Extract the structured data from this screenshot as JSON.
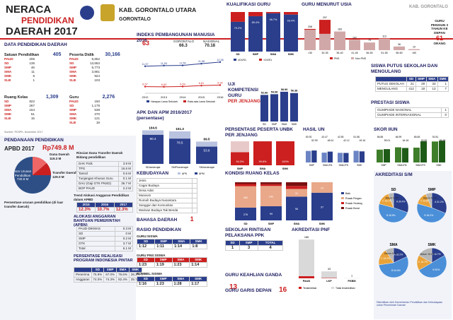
{
  "header": {
    "title1": "NERACA",
    "title2": "PENDIDIKAN",
    "title3": "DAERAH 2017",
    "region": "KAB. GORONTALO UTARA",
    "region2": "GORONTALO",
    "corner": "KAB. GORONTALO"
  },
  "data_pendidikan": {
    "title": "DATA PENDIDIKAN DAERAH",
    "satuan": {
      "label": "Satuan Pendidikan",
      "total": "405",
      "items": [
        [
          "PAUD",
          "206"
        ],
        [
          "SD",
          "135"
        ],
        [
          "SMP",
          "46"
        ],
        [
          "SMA",
          "11"
        ],
        [
          "SMK",
          "6"
        ],
        [
          "SLB",
          "1"
        ]
      ]
    },
    "peserta": {
      "label": "Peserta Didik",
      "total": "30,166",
      "items": [
        [
          "PAUD",
          "5,852"
        ],
        [
          "SD",
          "13,653"
        ],
        [
          "SMP",
          "5,773"
        ],
        [
          "SMA",
          "3,861"
        ],
        [
          "SMK",
          "924"
        ],
        [
          "SLB",
          "103"
        ]
      ]
    },
    "ruang": {
      "label": "Ruang Kelas",
      "total": "1,309",
      "items": [
        [
          "SD",
          "822"
        ],
        [
          "SMP",
          "267"
        ],
        [
          "SMA",
          "154"
        ],
        [
          "SMK",
          "51"
        ],
        [
          "SLB",
          "15"
        ]
      ]
    },
    "guru": {
      "label": "Guru",
      "total": "2,276",
      "items": [
        [
          "PAUD",
          "150"
        ],
        [
          "SD",
          "1,178"
        ],
        [
          "SMP",
          "538"
        ],
        [
          "SMA",
          "270"
        ],
        [
          "SMK",
          "121"
        ],
        [
          "SLB",
          "19"
        ]
      ]
    },
    "source": "Sumber: PDSPK, November 2017"
  },
  "ipm": {
    "title": "INDEKS PEMBANGUNAN MANUSIA 2016",
    "rank": "63",
    "label_a": "GORONTALO",
    "val_a": "66.3",
    "label_b": "NASIONAL",
    "val_b": "70.18",
    "legend_a": "Harapan Lama Sekolah",
    "legend_b": "Rata-rata Lama Sekolah"
  },
  "apk": {
    "title": "APK DAN APM 2016/2017",
    "subtitle": "(persentase)",
    "legend_a": "APK",
    "legend_b": "APM"
  },
  "kualifikasi": {
    "title": "KUALIFIKASI GURU"
  },
  "usia": {
    "title": "GURU MENURUT USIA",
    "note": "GURU PENSIUN 3 TAHUN KE DEPAN",
    "note_val": "61",
    "note_unit": "ORANG"
  },
  "uji": {
    "title": "UJI KOMPETENSI GURU",
    "sub": "PER JENJANG"
  },
  "putus": {
    "title": "SISWA PUTUS SEKOLAH DAN MENGULANG",
    "rows": [
      [
        "PUTUS SEKOLAH",
        "21",
        "29",
        "33",
        "1"
      ],
      [
        "MENGULANG",
        "412",
        "18",
        "13",
        "7"
      ]
    ],
    "cols": [
      "SD",
      "SMP",
      "SMA",
      "SMK"
    ]
  },
  "prestasi": {
    "title": "PRESTASI SISWA",
    "rows": [
      [
        "OLIMPIADE NASIONAL",
        "1"
      ],
      [
        "OLIMPIADE INTERNASIONAL",
        "0"
      ]
    ]
  },
  "unbk": {
    "title": "PERSENTASE PESERTA UNBK PER JENJANG"
  },
  "hasil_un": {
    "title": "HASIL UN"
  },
  "skor_iun": {
    "title": "SKOR IIUN"
  },
  "dana": {
    "title": "PENDANAAN PENDIDIKAN",
    "apbd": "APBD 2017",
    "apbd_val": "Rp749.8 M",
    "dana_daerah": "Dana Daerah",
    "dana_daerah_val": "119.3 M",
    "transfer": "Transfer Daerah",
    "transfer_val": "129.0 M",
    "non": "Non Urusan Pendidikan",
    "non_val": "730.8 M",
    "rincian": "Rincian Dana Transfer Daerah Bidang pendidikan",
    "rincian_rows": [
      [
        "DAK Fisik",
        "3.9 M"
      ],
      [
        "TPG",
        "16.6 M"
      ],
      [
        "Tamsil",
        "0.6 M"
      ],
      [
        "Tunjangan Khusus Guru",
        "0.1 M"
      ],
      [
        "DAU (Gaji GTK PNSD)",
        "36.7 M"
      ],
      [
        "BOP PAUD",
        "2.2 M"
      ]
    ],
    "tren_title": "Trend Alokasi Anggaran Pendidikan dalam APBD",
    "tren_years": [
      "2015",
      "2016",
      "2017"
    ],
    "tren_vals": [
      "12.3%",
      "10.7%",
      "12.3%"
    ],
    "alok_title": "ALOKASI ANGGARAN BANTUAN PEMERINTAH (APBN)",
    "alok_rows": [
      [
        "PAUD-DIKMAS",
        "0.3 M"
      ],
      [
        "SD",
        "0 M"
      ],
      [
        "SMP",
        "0.2 M"
      ],
      [
        "GTK",
        "3.7 M"
      ],
      [
        "Total",
        "6.1 M"
      ]
    ],
    "persen_title": "Persentase urusan pendidikan (di luar transfer daerah)"
  },
  "pip": {
    "title": "PERSENTASE REALISASI PROGRAM INDONESIA PINTAR",
    "cols": [
      "SD",
      "SMP",
      "SMA",
      "SMK"
    ],
    "rows": [
      [
        "Penerima",
        "75.9%",
        "67.0%",
        "76.6%",
        "26.3%"
      ],
      [
        "Anggaran",
        "74.0%",
        "74.3%",
        "82.4%",
        "25.7%"
      ]
    ]
  },
  "kebudayaan": {
    "title": "KEBUDAYAAN",
    "col": "JUMLAH",
    "rows": [
      "Jenis",
      "Cagar Budaya",
      "Desa Adat",
      "Museum",
      "Rumah Budaya Nusantara",
      "Sanggar dan Komunitas",
      "Warisan Budaya Tak Benda"
    ]
  },
  "bahasa": {
    "title": "BAHASA DAERAH",
    "val": "1"
  },
  "rasio": {
    "title": "RASIO PENDIDIKAN",
    "g1": "GURU:SISWA",
    "g1c": [
      "SD",
      "SMP",
      "SMA",
      "SMK"
    ],
    "g1v": [
      "1:12",
      "1:11",
      "1:14",
      "1:8"
    ],
    "g2": "GURU PNS:SISWA",
    "g2v": [
      "1:23",
      "1:19",
      "1:23",
      "1:14"
    ],
    "g3": "ROMBEL:SISWA",
    "g3v": [
      "1:16",
      "1:23",
      "1:28",
      "1:17"
    ]
  },
  "kondisi": {
    "title": "KONDISI RUANG KELAS",
    "legend": [
      "Baik",
      "Rusak Ringan",
      "Rusak Sedang",
      "Rusak Berat"
    ]
  },
  "ppk": {
    "title": "SEKOLAH RINTISAN PELAKSANA PPK",
    "cols": [
      "SD",
      "SMP",
      "TOTAL"
    ],
    "vals": [
      "1",
      "3",
      "4"
    ]
  },
  "keahlian": {
    "title": "GURU KEAHLIAN GANDA",
    "val": "13"
  },
  "daerah_khusus": {
    "title": "GURU GARIS DEPAN",
    "val": "16"
  },
  "pnf": {
    "title": "AKREDITASI PNF",
    "legend_a": "Terakreditasi",
    "legend_b": "Tidak terakreditasi"
  },
  "akreditasi": {
    "title": "AKREDITASI S/M",
    "labels": [
      "SD",
      "SMP",
      "SMA",
      "SMK"
    ]
  },
  "footer": "Diterbitkan oleh Kementerian Pendidikan dan Kebudayaan untuk Pemerintah Daerah",
  "chart_data": [
    {
      "type": "line",
      "title": "INDEKS PEMBANGUNAN MANUSIA 2016",
      "x": [
        "2012",
        "2013",
        "2014",
        "2015",
        "2016"
      ],
      "series": [
        {
          "name": "Harapan Lama Sekolah",
          "values": [
            11.37,
            11.53,
            11.56,
            11.98,
            12.36
          ]
        },
        {
          "name": "Rata-rata Lama Sekolah",
          "values": [
            6.57,
            6.53,
            6.59,
            6.81,
            6.92
          ]
        }
      ]
    },
    {
      "type": "bar",
      "title": "APK DAN APM 2016/2017",
      "categories": [
        "SD/sederajat",
        "SMP/sederajat",
        "SM/sederajat"
      ],
      "series": [
        {
          "name": "APK",
          "values": [
            104.6,
            101.3,
            69.5
          ]
        },
        {
          "name": "APM",
          "values": [
            90.4,
            78.5,
            53.6
          ]
        }
      ]
    },
    {
      "type": "bar",
      "title": "KUALIFIKASI GURU",
      "categories": [
        "SD",
        "SMP",
        "SMA",
        "SMK"
      ],
      "series": [
        {
          "name": "≥D4/S1",
          "values": [
            75.2,
            89.4,
            96.7,
            93.4
          ]
        },
        {
          "name": "<D4/S1",
          "values": [
            24.8,
            10.6,
            3.3,
            6.6
          ]
        }
      ]
    },
    {
      "type": "bar",
      "title": "GURU MENURUT USIA",
      "categories": [
        "<30",
        "30-35",
        "36-40",
        "41-45",
        "46-50",
        "51-55",
        "56-60",
        ">60"
      ],
      "series": [
        {
          "name": "PNS",
          "values": [
            8,
            137,
            0,
            0,
            0,
            0,
            0,
            0
          ]
        },
        {
          "name": "Non PNS",
          "values": [
            200,
            160,
            183,
            102,
            75,
            113,
            36,
            10
          ]
        }
      ]
    },
    {
      "type": "bar",
      "title": "UJI KOMPETENSI GURU",
      "categories": [
        "SD",
        "SMP",
        "SMA",
        "SMK"
      ],
      "values": [
        52.66,
        54.08,
        58.99,
        56.38
      ]
    },
    {
      "type": "bar",
      "title": "PERSENTASE PESERTA UNBK PER JENJANG",
      "categories": [
        "SMP",
        "SMA",
        "SMK"
      ],
      "values": [
        54.3,
        99.8,
        100
      ]
    },
    {
      "type": "bar",
      "title": "HASIL UN",
      "categories": [
        "SMP",
        "SMA IPA",
        "SMA IPS",
        "SMK"
      ],
      "series": [
        {
          "name": "Kab.",
          "values": [
            50.92,
            43.47,
            42.55,
            51.58
          ]
        },
        {
          "name": "Prov.",
          "values": [
            52.99,
            48.04,
            42.12,
            49.16
          ]
        }
      ]
    },
    {
      "type": "bar",
      "title": "SKOR IIUN",
      "categories": [
        "SMP",
        "SMA IPA",
        "SMA IPS",
        "SMK"
      ],
      "series": [
        {
          "name": "Kab.",
          "values": [
            56.85,
            66.99,
            65.65,
            92.81
          ]
        },
        {
          "name": "Prov.",
          "values": [
            59.01,
            64.18,
            93.69,
            95.99
          ]
        }
      ]
    },
    {
      "type": "bar",
      "title": "KONDISI RUANG KELAS",
      "categories": [
        "SD",
        "SMP",
        "SMA",
        "SMK"
      ],
      "series": [
        {
          "name": "Baik",
          "values": [
            276,
            99,
            96,
            37
          ]
        },
        {
          "name": "Rusak Ringan",
          "values": [
            460,
            142,
            31,
            14
          ]
        },
        {
          "name": "Rusak Sedang",
          "values": [
            48,
            12,
            12,
            0
          ]
        },
        {
          "name": "Rusak Berat",
          "values": [
            38,
            14,
            15,
            0
          ]
        }
      ]
    },
    {
      "type": "bar",
      "title": "AKREDITASI PNF",
      "categories": [
        "PAUD",
        "LKP",
        "PKBM"
      ],
      "series": [
        {
          "name": "Terakreditasi",
          "values": [
            11,
            2,
            0
          ]
        },
        {
          "name": "Tidak terakreditasi",
          "values": [
            185,
            33,
            1
          ]
        }
      ]
    },
    {
      "type": "pie",
      "title": "SD",
      "labels": [
        "A",
        "B",
        "C",
        "Belum"
      ],
      "values": [
        30.4,
        48.8,
        15.1,
        5.7
      ]
    },
    {
      "type": "pie",
      "title": "SMP",
      "labels": [
        "A",
        "B",
        "C",
        "Belum"
      ],
      "values": [
        31.2,
        48.3,
        13.8,
        6.7
      ]
    },
    {
      "type": "pie",
      "title": "SMA",
      "labels": [
        "A",
        "B",
        "C",
        "Belum"
      ],
      "values": [
        18.2,
        54.5,
        18.2,
        9.1
      ]
    },
    {
      "type": "pie",
      "title": "SMK",
      "labels": [
        "A",
        "B",
        "C",
        "Belum"
      ],
      "values": [
        16.7,
        50.0,
        16.7,
        16.6
      ]
    }
  ]
}
